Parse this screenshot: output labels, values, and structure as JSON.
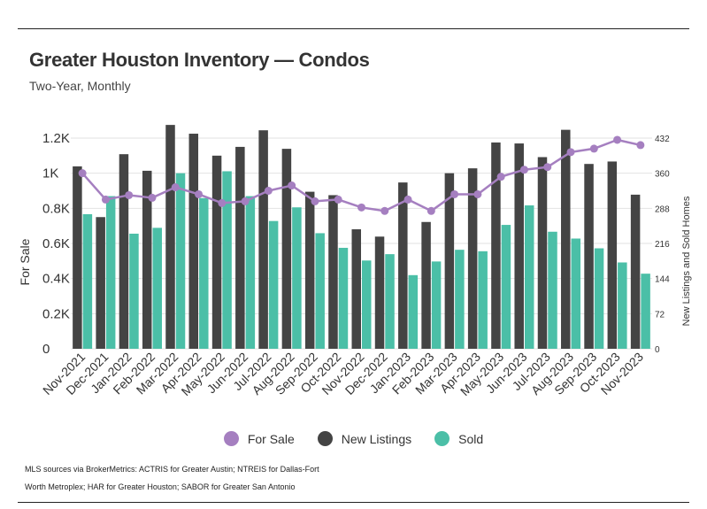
{
  "header": {
    "title": "Greater Houston Inventory — Condos",
    "subtitle": "Two-Year, Monthly"
  },
  "legend": [
    {
      "label": "For Sale",
      "color": "#a57fc0"
    },
    {
      "label": "New Listings",
      "color": "#444444"
    },
    {
      "label": "Sold",
      "color": "#4bbfa7"
    }
  ],
  "footer": {
    "line1": "MLS sources via BrokerMetrics: ACTRIS for Greater Austin; NTREIS for Dallas-Fort",
    "line2": "Worth Metroplex; HAR for Greater Houston; SABOR for Greater San Antonio"
  },
  "chart_data": {
    "type": "bar",
    "categories": [
      "Nov-2021",
      "Dec-2021",
      "Jan-2022",
      "Feb-2022",
      "Mar-2022",
      "Apr-2022",
      "May-2022",
      "Jun-2022",
      "Jul-2022",
      "Aug-2022",
      "Sep-2022",
      "Oct-2022",
      "Nov-2022",
      "Dec-2022",
      "Jan-2023",
      "Feb-2023",
      "Mar-2023",
      "Apr-2023",
      "May-2023",
      "Jun-2023",
      "Jul-2023",
      "Aug-2023",
      "Sep-2023",
      "Oct-2023",
      "Nov-2023"
    ],
    "ylabel_left": "For Sale",
    "ylabel_right": "New Listings and Sold Homes",
    "left_axis": {
      "ticks": [
        "0",
        "0.2K",
        "0.4K",
        "0.6K",
        "0.8K",
        "1K",
        "1.2K"
      ],
      "ylim": [
        0,
        1200
      ]
    },
    "right_axis": {
      "ticks": [
        "0",
        "72",
        "144",
        "216",
        "288",
        "360",
        "432"
      ],
      "ylim": [
        0,
        432
      ]
    },
    "grid": true,
    "legend_position": "bottom",
    "series": [
      {
        "name": "For Sale",
        "type": "line",
        "axis": "left",
        "color": "#a57fc0",
        "values": [
          1000,
          850,
          875,
          860,
          920,
          880,
          830,
          840,
          900,
          930,
          840,
          850,
          805,
          785,
          850,
          785,
          880,
          880,
          980,
          1020,
          1035,
          1120,
          1140,
          1190,
          1160
        ]
      },
      {
        "name": "New Listings",
        "type": "bar",
        "axis": "right",
        "color": "#444444",
        "values": [
          374,
          270,
          399,
          365,
          459,
          441,
          396,
          414,
          448,
          410,
          322,
          315,
          245,
          230,
          341,
          260,
          360,
          370,
          423,
          421,
          393,
          449,
          379,
          384,
          316
        ]
      },
      {
        "name": "Sold",
        "type": "bar",
        "axis": "right",
        "color": "#4bbfa7",
        "values": [
          276,
          313,
          236,
          248,
          360,
          309,
          364,
          313,
          262,
          290,
          237,
          207,
          181,
          194,
          151,
          179,
          203,
          200,
          254,
          294,
          240,
          226,
          206,
          177,
          154
        ]
      }
    ]
  }
}
